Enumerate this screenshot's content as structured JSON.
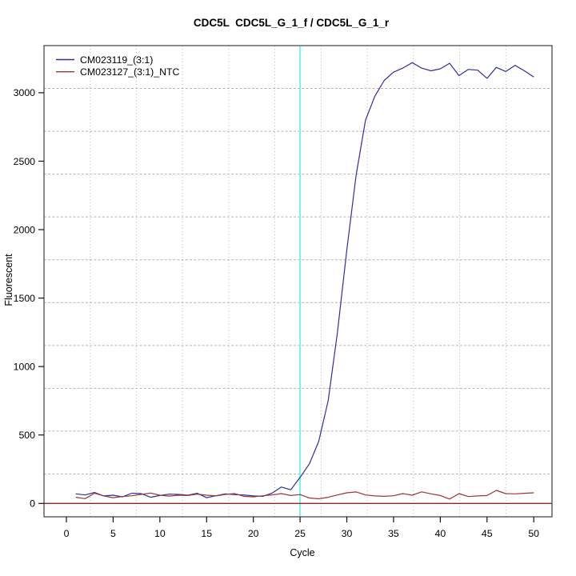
{
  "title": "CDC5L  CDC5L_G_1_f / CDC5L_G_1_r",
  "axes": {
    "x_label": "Cycle",
    "y_label": "Fluorescent",
    "x_ticks": [
      0,
      5,
      10,
      15,
      20,
      25,
      30,
      35,
      40,
      45,
      50
    ],
    "y_ticks": [
      0,
      500,
      1000,
      1500,
      2000,
      2500,
      3000
    ]
  },
  "legend": {
    "entries": [
      {
        "label": "CM023119_(3:1)",
        "color": "#2f2f9d"
      },
      {
        "label": "CM023127_(3:1)_NTC",
        "color": "#9e3434"
      }
    ]
  },
  "colors": {
    "series_sample": "#2f2f9d",
    "series_ntc": "#9e3434",
    "baseline": "#8f2626",
    "threshold_line": "#80eef0",
    "grid": "#b5b5b5",
    "box": "#3d3d3d",
    "tick": "#111111"
  },
  "chart_data": {
    "type": "line",
    "title": "CDC5L  CDC5L_G_1_f / CDC5L_G_1_r",
    "xlabel": "Cycle",
    "ylabel": "Fluorescent",
    "xlim": [
      -2.4,
      51.9
    ],
    "ylim": [
      -100,
      3350
    ],
    "grid": true,
    "legend_position": "top-left",
    "threshold_vline_x": 25,
    "baseline_hline_y": 0,
    "x": [
      1,
      2,
      3,
      4,
      5,
      6,
      7,
      8,
      9,
      10,
      11,
      12,
      13,
      14,
      15,
      16,
      17,
      18,
      19,
      20,
      21,
      22,
      23,
      24,
      25,
      26,
      27,
      28,
      29,
      30,
      31,
      32,
      33,
      34,
      35,
      36,
      37,
      38,
      39,
      40,
      41,
      42,
      43,
      44,
      45,
      46,
      47,
      48,
      49,
      50
    ],
    "series": [
      {
        "name": "CM023119_(3:1)",
        "color": "#2f2f9d",
        "values": [
          70,
          62,
          80,
          55,
          60,
          48,
          75,
          72,
          45,
          58,
          68,
          66,
          60,
          74,
          42,
          56,
          70,
          64,
          62,
          55,
          52,
          75,
          120,
          100,
          190,
          290,
          455,
          750,
          1250,
          1850,
          2400,
          2800,
          2975,
          3090,
          3150,
          3180,
          3220,
          3180,
          3160,
          3175,
          3215,
          3125,
          3170,
          3165,
          3105,
          3185,
          3155,
          3200,
          3160,
          3115
        ]
      },
      {
        "name": "CM023127_(3:1)_NTC",
        "color": "#9e3434",
        "values": [
          45,
          35,
          75,
          55,
          42,
          50,
          56,
          66,
          76,
          60,
          54,
          60,
          58,
          68,
          60,
          55,
          66,
          72,
          52,
          48,
          56,
          62,
          72,
          58,
          65,
          40,
          34,
          45,
          62,
          78,
          84,
          62,
          55,
          52,
          56,
          72,
          60,
          85,
          70,
          58,
          32,
          72,
          50,
          55,
          58,
          95,
          72,
          70,
          74,
          78
        ]
      }
    ]
  }
}
